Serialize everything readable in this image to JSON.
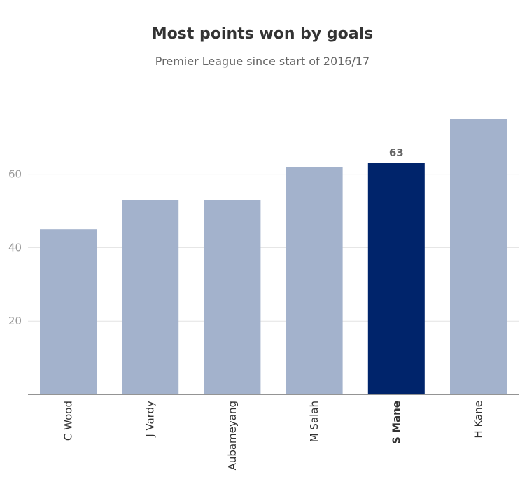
{
  "chart_data": {
    "type": "bar",
    "title": "Most points won by goals",
    "subtitle": "Premier League since start of 2016/17",
    "categories": [
      "C Wood",
      "J Vardy",
      "Aubameyang",
      "M Salah",
      "S Mane",
      "H Kane"
    ],
    "values": [
      45,
      53,
      53,
      62,
      63,
      75
    ],
    "highlight": "S Mane",
    "data_labels": [
      {
        "category": "S Mane",
        "text": "63"
      }
    ],
    "ylim": [
      0,
      80
    ],
    "yticks": [
      20,
      40,
      60
    ],
    "grid": true,
    "xlabel": "",
    "ylabel": "",
    "colors": {
      "bar": "#a3b2cc",
      "highlight": "#00246b"
    }
  }
}
